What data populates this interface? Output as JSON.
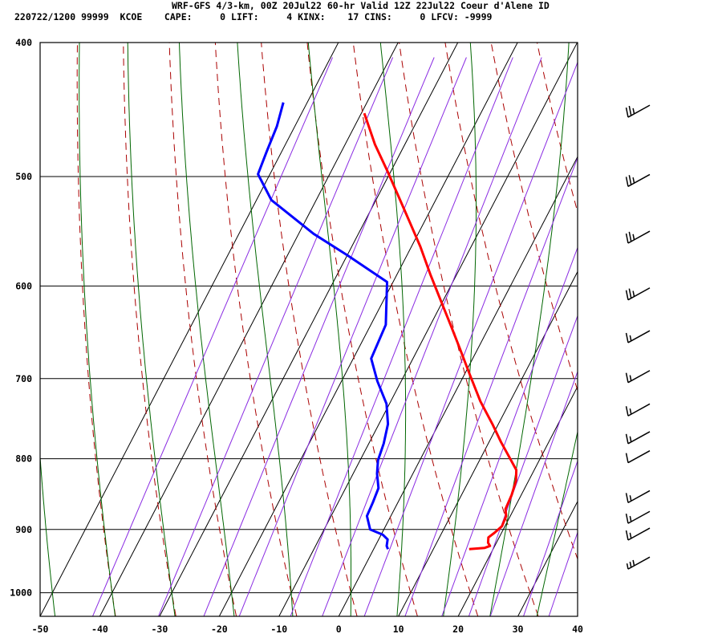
{
  "header": {
    "line1": "WRF-GFS 4/3-km, 00Z 20Jul22 60-hr Valid 12Z 22Jul22 Coeur d'Alene ID",
    "line2": "220722/1200 99999  KCOE    CAPE:     0 LIFT:     4 KINX:    17 CINS:     0 LFCV: -9999"
  },
  "chart_data": {
    "type": "line",
    "subtype": "skew-t log-p sounding",
    "xlabel": "",
    "ylabel": "",
    "x_ticks": [
      "-50",
      "-40",
      "-30",
      "-20",
      "-10",
      "0",
      "10",
      "20",
      "30",
      "40"
    ],
    "y_ticks": [
      "400",
      "500",
      "600",
      "700",
      "800",
      "900",
      "1000"
    ],
    "xlim": [
      -50,
      40
    ],
    "ylim_pressure_hpa": [
      1040,
      400
    ],
    "grid": true,
    "colors": {
      "temperature": "#ff0000",
      "dewpoint": "#0000ff",
      "dry_adiabat": "#aa0000",
      "moist_adiabat": "#006600",
      "mixing_ratio": "#8a2be2",
      "wind_barb": "#000000"
    },
    "series": [
      {
        "points": [
          [
            16.0,
            930
          ],
          [
            18.5,
            928
          ],
          [
            19.2,
            925
          ],
          [
            18.6,
            920
          ],
          [
            18.2,
            912
          ],
          [
            18.8,
            905
          ],
          [
            19.5,
            895
          ],
          [
            19.3,
            880
          ],
          [
            18.6,
            870
          ],
          [
            18.4,
            850
          ],
          [
            17.9,
            830
          ],
          [
            17.0,
            815
          ],
          [
            15.0,
            800
          ],
          [
            12.0,
            778
          ],
          [
            9.0,
            755
          ],
          [
            5.0,
            727
          ],
          [
            1.0,
            696
          ],
          [
            -3.0,
            666
          ],
          [
            -6.5,
            641
          ],
          [
            -10.5,
            614
          ],
          [
            -14.5,
            588
          ],
          [
            -18.5,
            562
          ],
          [
            -22.5,
            539
          ],
          [
            -26.5,
            517
          ],
          [
            -30.5,
            496
          ],
          [
            -35.0,
            474
          ],
          [
            -39.5,
            450
          ]
        ]
      },
      {
        "points": [
          [
            2.4,
            930
          ],
          [
            1.9,
            925
          ],
          [
            1.5,
            915
          ],
          [
            0.3,
            908
          ],
          [
            -2.3,
            900
          ],
          [
            -4.0,
            880
          ],
          [
            -4.2,
            860
          ],
          [
            -4.5,
            840
          ],
          [
            -6.0,
            820
          ],
          [
            -7.0,
            802
          ],
          [
            -7.5,
            780
          ],
          [
            -8.5,
            755
          ],
          [
            -10.5,
            730
          ],
          [
            -14.0,
            703
          ],
          [
            -17.0,
            677
          ],
          [
            -17.5,
            640
          ],
          [
            -21.0,
            596
          ],
          [
            -30.0,
            570
          ],
          [
            -37.5,
            550
          ],
          [
            -47.5,
            520
          ],
          [
            -52.0,
            498
          ],
          [
            -52.5,
            480
          ],
          [
            -53.0,
            460
          ],
          [
            -54.0,
            442
          ]
        ]
      }
    ],
    "wind_barbs": [
      {
        "pressure": 450,
        "barbs": [
          "full",
          "full",
          "half"
        ]
      },
      {
        "pressure": 505,
        "barbs": [
          "full",
          "full",
          "half"
        ]
      },
      {
        "pressure": 555,
        "barbs": [
          "full",
          "full",
          "half"
        ]
      },
      {
        "pressure": 610,
        "barbs": [
          "full",
          "full",
          "half"
        ]
      },
      {
        "pressure": 655,
        "barbs": [
          "full",
          "half"
        ]
      },
      {
        "pressure": 700,
        "barbs": [
          "full",
          "half"
        ]
      },
      {
        "pressure": 740,
        "barbs": [
          "full",
          "half"
        ]
      },
      {
        "pressure": 775,
        "barbs": [
          "full",
          "half"
        ]
      },
      {
        "pressure": 800,
        "barbs": [
          "full"
        ]
      },
      {
        "pressure": 855,
        "barbs": [
          "full",
          "half"
        ]
      },
      {
        "pressure": 885,
        "barbs": [
          "full",
          "half"
        ]
      },
      {
        "pressure": 910,
        "barbs": [
          "full",
          "half"
        ]
      },
      {
        "pressure": 955,
        "barbs": [
          "half",
          "half",
          "half"
        ]
      }
    ]
  }
}
